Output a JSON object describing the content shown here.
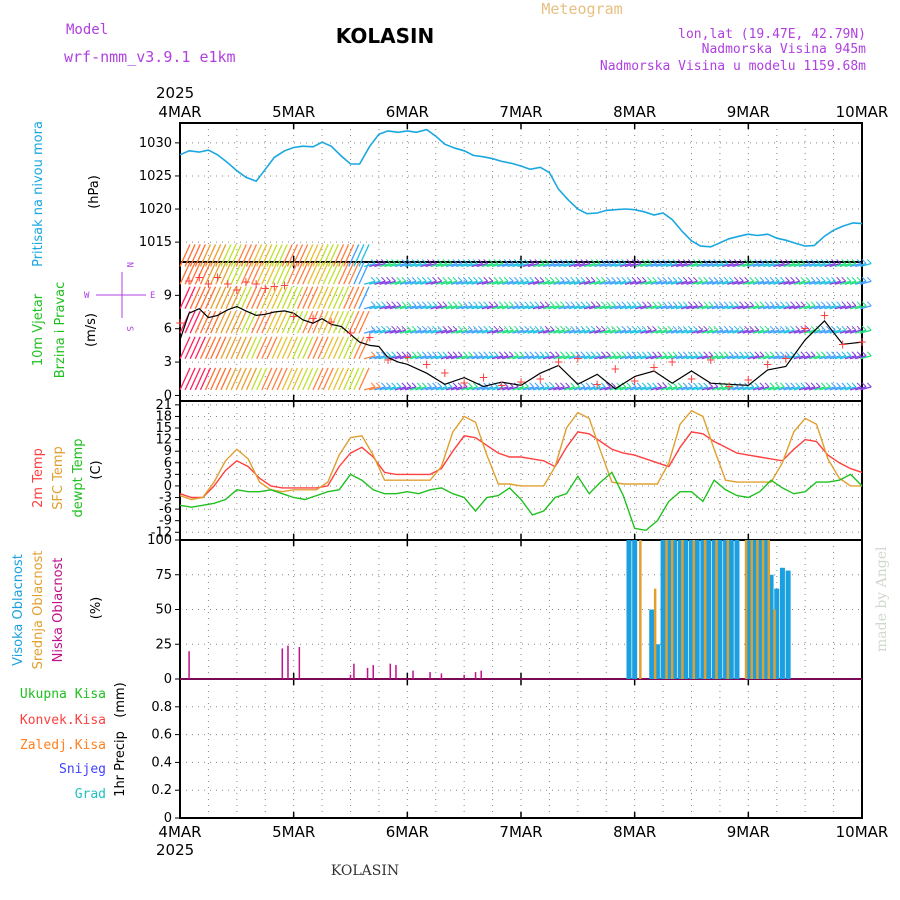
{
  "header": {
    "model_label": "Model",
    "model_name": "wrf-nmm_v3.9.1 e1km",
    "station": "KOLASIN",
    "product": "Meteogram",
    "lonlat": "lon,lat (19.47E, 42.79N)",
    "elevation": "Nadmorska Visina 945m",
    "model_elevation": "Nadmorska Visina u modelu 1159.68m",
    "footer_station": "KOLASIN",
    "credit": "made by Angel"
  },
  "colors": {
    "pressure": "#1aa7e0",
    "wind_speed": "#000000",
    "gust": "#ff4040",
    "t2m": "#ff4040",
    "sfc": "#e0a030",
    "dew": "#20c020",
    "cloud_high": "#1aa0e0",
    "cloud_mid": "#e0a030",
    "cloud_low": "#c0108a",
    "model": "#b040e0",
    "meteogram": "#e8c080"
  },
  "chart_data": [
    {
      "type": "line",
      "title": "Pritisak na nivou mora",
      "ylabel": "(hPa)",
      "ylim": [
        1012,
        1033
      ],
      "yticks": [
        1015,
        1020,
        1025,
        1030
      ],
      "x_categories": [
        "4MAR",
        "5MAR",
        "6MAR",
        "7MAR",
        "8MAR",
        "9MAR",
        "10MAR"
      ],
      "x_year": "2025",
      "series": [
        {
          "key": "pressure",
          "x": [
            0,
            0.08,
            0.17,
            0.25,
            0.33,
            0.42,
            0.5,
            0.58,
            0.67,
            0.75,
            0.83,
            0.92,
            1.0,
            1.08,
            1.17,
            1.25,
            1.33,
            1.42,
            1.5,
            1.58,
            1.67,
            1.75,
            1.83,
            1.92,
            2.0,
            2.08,
            2.17,
            2.25,
            2.33,
            2.42,
            2.5,
            2.58,
            2.67,
            2.75,
            2.83,
            2.92,
            3.0,
            3.08,
            3.17,
            3.25,
            3.33,
            3.42,
            3.5,
            3.58,
            3.67,
            3.75,
            3.83,
            3.92,
            4.0,
            4.08,
            4.17,
            4.25,
            4.33,
            4.42,
            4.5,
            4.58,
            4.67,
            4.75,
            4.83,
            4.92,
            5.0,
            5.08,
            5.17,
            5.25,
            5.33,
            5.42,
            5.5,
            5.58,
            5.67,
            5.75,
            5.83,
            5.92,
            6.0
          ],
          "values": [
            1028.2,
            1028.8,
            1028.6,
            1028.9,
            1028.2,
            1027.0,
            1025.8,
            1024.8,
            1024.2,
            1026.0,
            1027.8,
            1028.8,
            1029.3,
            1029.5,
            1029.4,
            1030.1,
            1029.5,
            1028.0,
            1026.8,
            1026.8,
            1029.5,
            1031.3,
            1031.8,
            1031.6,
            1031.8,
            1031.6,
            1032.0,
            1031.0,
            1029.8,
            1029.2,
            1028.8,
            1028.1,
            1027.9,
            1027.6,
            1027.2,
            1026.9,
            1026.5,
            1026.0,
            1026.3,
            1025.5,
            1023.0,
            1021.3,
            1020.0,
            1019.3,
            1019.4,
            1019.8,
            1019.9,
            1020.0,
            1019.9,
            1019.6,
            1019.1,
            1019.4,
            1018.4,
            1016.6,
            1015.2,
            1014.4,
            1014.3,
            1014.9,
            1015.5,
            1015.9,
            1016.2,
            1016.0,
            1016.2,
            1015.6,
            1015.3,
            1014.8,
            1014.4,
            1014.5,
            1015.9,
            1016.8,
            1017.4,
            1017.9,
            1017.8
          ]
        }
      ]
    },
    {
      "type": "line",
      "title": "10m Vjetar Brzina i Pravac",
      "ylabel": "(m/s)",
      "ylim": [
        -0.5,
        12
      ],
      "yticks": [
        0,
        3,
        6,
        9
      ],
      "legend_labels": [
        "W",
        "E",
        "N",
        "S"
      ],
      "series": [
        {
          "key": "wind_speed",
          "x": [
            0,
            0.08,
            0.17,
            0.25,
            0.33,
            0.42,
            0.5,
            0.58,
            0.67,
            0.75,
            0.83,
            0.92,
            1.0,
            1.08,
            1.17,
            1.25,
            1.33,
            1.42,
            1.5,
            1.58,
            1.67,
            1.75,
            1.83,
            1.92,
            2.0,
            2.17,
            2.33,
            2.5,
            2.67,
            2.83,
            3.0,
            3.17,
            3.33,
            3.5,
            3.67,
            3.83,
            4.0,
            4.17,
            4.33,
            4.5,
            4.67,
            4.83,
            5.0,
            5.17,
            5.33,
            5.5,
            5.67,
            5.83,
            6.0
          ],
          "values": [
            5.0,
            7.4,
            7.8,
            7.0,
            7.2,
            7.7,
            8.0,
            7.6,
            7.2,
            7.3,
            7.5,
            7.6,
            7.4,
            6.8,
            6.5,
            6.9,
            6.4,
            6.2,
            5.5,
            4.8,
            4.5,
            4.4,
            3.4,
            3.0,
            2.8,
            2.0,
            1.0,
            1.6,
            0.8,
            1.2,
            0.9,
            2.0,
            2.7,
            1.0,
            1.9,
            0.6,
            1.7,
            2.2,
            1.1,
            2.2,
            1.1,
            1.0,
            0.9,
            2.3,
            2.6,
            5.0,
            6.7,
            4.6,
            4.8
          ]
        },
        {
          "key": "gust",
          "x": [
            0,
            0.08,
            0.17,
            0.25,
            0.33,
            0.42,
            0.5,
            0.58,
            0.67,
            0.75,
            0.83,
            0.92,
            1.0,
            1.17,
            1.33,
            1.5,
            1.67,
            1.83,
            2.0,
            2.17,
            2.33,
            2.5,
            2.67,
            2.83,
            3.0,
            3.17,
            3.33,
            3.5,
            3.67,
            3.83,
            4.0,
            4.17,
            4.33,
            4.5,
            4.67,
            4.83,
            5.0,
            5.17,
            5.33,
            5.5,
            5.67,
            5.83,
            6.0
          ],
          "values": [
            6.5,
            10.3,
            10.6,
            10.0,
            10.6,
            10.0,
            9.5,
            10.2,
            10.0,
            9.6,
            9.8,
            9.9,
            7.1,
            6.9,
            6.6,
            5.6,
            5.2,
            3.2,
            3.4,
            2.8,
            2.0,
            1.1,
            1.6,
            0.9,
            1.2,
            1.5,
            3.0,
            3.3,
            1.0,
            2.4,
            1.3,
            2.5,
            3.0,
            1.5,
            3.2,
            0.8,
            1.4,
            2.8,
            3.3,
            6.0,
            7.2,
            4.6,
            4.8
          ]
        }
      ]
    },
    {
      "type": "line",
      "title": "2m Temp SFC Temp dewpt Temp",
      "ylabel": "(C)",
      "ylim": [
        -14,
        22
      ],
      "yticks": [
        -12,
        -9,
        -6,
        -3,
        0,
        3,
        6,
        9,
        12,
        15,
        18,
        21
      ],
      "series": [
        {
          "name": "2m Temp",
          "key": "t2m",
          "x": [
            0,
            0.1,
            0.2,
            0.3,
            0.4,
            0.5,
            0.6,
            0.7,
            0.8,
            0.9,
            1.0,
            1.1,
            1.2,
            1.3,
            1.4,
            1.5,
            1.6,
            1.7,
            1.8,
            1.9,
            2.0,
            2.1,
            2.2,
            2.3,
            2.4,
            2.5,
            2.6,
            2.7,
            2.8,
            2.9,
            3.0,
            3.1,
            3.2,
            3.3,
            3.4,
            3.5,
            3.6,
            3.7,
            3.8,
            3.9,
            4.0,
            4.1,
            4.2,
            4.3,
            4.4,
            4.5,
            4.6,
            4.7,
            4.8,
            4.9,
            5.0,
            5.1,
            5.2,
            5.3,
            5.4,
            5.5,
            5.6,
            5.7,
            5.8,
            5.9,
            6.0
          ],
          "values": [
            -2.0,
            -3.0,
            -3.0,
            0.0,
            4.0,
            6.5,
            5.0,
            2.0,
            0.0,
            -0.5,
            -0.5,
            -0.5,
            -0.5,
            0.0,
            5.0,
            8.5,
            10.0,
            7.5,
            3.5,
            3.0,
            3.0,
            3.0,
            3.0,
            4.5,
            9.0,
            13.0,
            12.5,
            10.5,
            8.5,
            7.5,
            7.5,
            7.0,
            6.5,
            5.0,
            10.0,
            14.0,
            13.5,
            11.5,
            9.5,
            8.5,
            8.0,
            7.0,
            6.0,
            5.0,
            10.0,
            14.0,
            13.5,
            11.5,
            10.0,
            8.5,
            8.0,
            7.5,
            7.0,
            6.5,
            9.5,
            12.0,
            11.5,
            8.0,
            6.0,
            4.5,
            3.5
          ]
        },
        {
          "name": "SFC Temp",
          "key": "sfc",
          "x": [
            0,
            0.1,
            0.2,
            0.3,
            0.4,
            0.5,
            0.6,
            0.7,
            0.8,
            0.9,
            1.0,
            1.1,
            1.2,
            1.3,
            1.4,
            1.5,
            1.6,
            1.7,
            1.8,
            1.9,
            2.0,
            2.1,
            2.2,
            2.3,
            2.4,
            2.5,
            2.6,
            2.7,
            2.8,
            2.9,
            3.0,
            3.1,
            3.2,
            3.3,
            3.4,
            3.5,
            3.6,
            3.7,
            3.8,
            3.9,
            4.0,
            4.1,
            4.2,
            4.3,
            4.4,
            4.5,
            4.6,
            4.7,
            4.8,
            4.9,
            5.0,
            5.1,
            5.2,
            5.3,
            5.4,
            5.5,
            5.6,
            5.7,
            5.8,
            5.9,
            6.0
          ],
          "values": [
            -2.5,
            -3.5,
            -3.0,
            1.0,
            6.5,
            9.5,
            7.0,
            1.0,
            -1.0,
            -1.5,
            -1.0,
            -1.0,
            -1.0,
            1.0,
            8.0,
            12.5,
            13.0,
            8.0,
            1.5,
            1.5,
            1.5,
            1.5,
            1.5,
            5.0,
            14.0,
            18.0,
            16.5,
            8.0,
            0.5,
            0.5,
            0.0,
            0.0,
            0.0,
            5.0,
            15.0,
            19.0,
            17.5,
            9.0,
            1.0,
            0.5,
            0.5,
            0.5,
            0.5,
            6.0,
            16.0,
            19.5,
            18.0,
            9.5,
            1.5,
            1.0,
            1.0,
            1.0,
            1.0,
            6.0,
            14.0,
            17.5,
            16.0,
            7.0,
            2.0,
            0.0,
            0.0
          ]
        },
        {
          "name": "dewpt Temp",
          "key": "dew",
          "x": [
            0,
            0.1,
            0.2,
            0.3,
            0.4,
            0.5,
            0.6,
            0.7,
            0.8,
            0.9,
            1.0,
            1.1,
            1.2,
            1.3,
            1.4,
            1.5,
            1.6,
            1.7,
            1.8,
            1.9,
            2.0,
            2.1,
            2.2,
            2.3,
            2.4,
            2.5,
            2.6,
            2.7,
            2.8,
            2.9,
            3.0,
            3.1,
            3.2,
            3.3,
            3.4,
            3.5,
            3.6,
            3.7,
            3.8,
            3.9,
            4.0,
            4.1,
            4.2,
            4.3,
            4.4,
            4.5,
            4.6,
            4.7,
            4.8,
            4.9,
            5.0,
            5.1,
            5.2,
            5.3,
            5.4,
            5.5,
            5.6,
            5.7,
            5.8,
            5.9,
            6.0
          ],
          "values": [
            -5.0,
            -5.5,
            -5.0,
            -4.5,
            -3.5,
            -1.0,
            -1.5,
            -1.5,
            -1.0,
            -2.0,
            -3.0,
            -3.5,
            -2.5,
            -1.5,
            -1.0,
            3.0,
            1.5,
            -1.0,
            -2.0,
            -2.0,
            -1.5,
            -2.0,
            -1.0,
            -0.5,
            -2.0,
            -3.0,
            -6.5,
            -3.0,
            -2.5,
            -0.5,
            -3.5,
            -7.5,
            -6.5,
            -3.0,
            -2.0,
            2.5,
            -2.0,
            1.0,
            3.5,
            -2.5,
            -11.0,
            -11.5,
            -9.0,
            -4.0,
            -1.5,
            -1.5,
            -4.0,
            1.5,
            -1.0,
            -2.5,
            -3.0,
            -1.5,
            1.5,
            -0.5,
            -2.0,
            -1.5,
            1.0,
            1.0,
            1.5,
            3.0,
            0.0
          ]
        }
      ]
    },
    {
      "type": "bar",
      "title": "Visoka Oblacnost Srednja Oblacnost Niska Oblacnost",
      "ylabel": "(%)",
      "ylim": [
        0,
        100
      ],
      "yticks": [
        0,
        25,
        50,
        75,
        100
      ],
      "low_bars": {
        "key": "cloud_low",
        "x": [
          0.08,
          0.9,
          0.95,
          1.05,
          1.5,
          1.53,
          1.65,
          1.7,
          1.85,
          1.9,
          2.05,
          2.2,
          2.3,
          2.5,
          2.6,
          2.65
        ],
        "values": [
          20,
          22,
          24,
          23,
          3,
          11,
          8,
          10,
          11,
          10,
          6,
          5,
          4,
          3,
          5,
          6
        ]
      },
      "high_bars": {
        "key": "cloud_high",
        "x": [
          3.95,
          4.0,
          4.15,
          4.2,
          4.25,
          4.3,
          4.35,
          4.4,
          4.45,
          4.5,
          4.55,
          4.6,
          4.65,
          4.7,
          4.75,
          4.8,
          4.85,
          4.9,
          5.0,
          5.05,
          5.1,
          5.15,
          5.2,
          5.25,
          5.3,
          5.35
        ],
        "values": [
          100,
          100,
          50,
          25,
          100,
          100,
          100,
          100,
          100,
          100,
          100,
          100,
          100,
          100,
          100,
          100,
          100,
          100,
          100,
          100,
          100,
          100,
          75,
          65,
          80,
          78
        ]
      },
      "mid_bars": {
        "key": "cloud_mid",
        "x": [
          4.05,
          4.18,
          4.28,
          4.33,
          4.42,
          4.52,
          4.62,
          4.72,
          4.82,
          4.98,
          5.03,
          5.08,
          5.13,
          5.18,
          5.23
        ],
        "values": [
          100,
          65,
          100,
          100,
          100,
          100,
          100,
          100,
          100,
          100,
          100,
          100,
          100,
          100,
          50
        ]
      }
    },
    {
      "type": "bar",
      "title": "1hr Precip",
      "ylabel": "(mm)",
      "ylim": [
        0,
        1.0
      ],
      "yticks": [
        0,
        0.2,
        0.4,
        0.6,
        0.8
      ],
      "legend_labels": [
        "Ukupna Kisa",
        "Konvek.Kisa",
        "Zaledj.Kisa",
        "Snijeg",
        "Grad"
      ],
      "legend_colors": [
        "#20c020",
        "#ff4040",
        "#ff8020",
        "#4040ff",
        "#20c0c0"
      ],
      "values": []
    }
  ]
}
